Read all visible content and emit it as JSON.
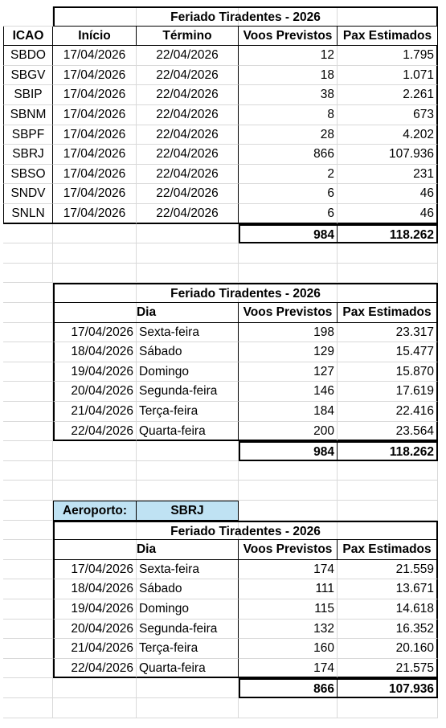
{
  "table1": {
    "title": "Feriado Tiradentes - 2026",
    "headers": [
      "ICAO",
      "Início",
      "Término",
      "Voos Previstos",
      "Pax Estimados"
    ],
    "rows": [
      [
        "SBDO",
        "17/04/2026",
        "22/04/2026",
        "12",
        "1.795"
      ],
      [
        "SBGV",
        "17/04/2026",
        "22/04/2026",
        "18",
        "1.071"
      ],
      [
        "SBIP",
        "17/04/2026",
        "22/04/2026",
        "38",
        "2.261"
      ],
      [
        "SBNM",
        "17/04/2026",
        "22/04/2026",
        "8",
        "673"
      ],
      [
        "SBPF",
        "17/04/2026",
        "22/04/2026",
        "28",
        "4.202"
      ],
      [
        "SBRJ",
        "17/04/2026",
        "22/04/2026",
        "866",
        "107.936"
      ],
      [
        "SBSO",
        "17/04/2026",
        "22/04/2026",
        "2",
        "231"
      ],
      [
        "SNDV",
        "17/04/2026",
        "22/04/2026",
        "6",
        "46"
      ],
      [
        "SNLN",
        "17/04/2026",
        "22/04/2026",
        "6",
        "46"
      ]
    ],
    "totals": [
      "984",
      "118.262"
    ]
  },
  "table2": {
    "title": "Feriado Tiradentes - 2026",
    "headers": [
      "Dia",
      "Voos Previstos",
      "Pax Estimados"
    ],
    "rows": [
      [
        "17/04/2026",
        "Sexta-feira",
        "198",
        "23.317"
      ],
      [
        "18/04/2026",
        "Sábado",
        "129",
        "15.477"
      ],
      [
        "19/04/2026",
        "Domingo",
        "127",
        "15.870"
      ],
      [
        "20/04/2026",
        "Segunda-feira",
        "146",
        "17.619"
      ],
      [
        "21/04/2026",
        "Terça-feira",
        "184",
        "22.416"
      ],
      [
        "22/04/2026",
        "Quarta-feira",
        "200",
        "23.564"
      ]
    ],
    "totals": [
      "984",
      "118.262"
    ]
  },
  "table3": {
    "airport_label": "Aeroporto:",
    "airport_value": "SBRJ",
    "title": "Feriado Tiradentes - 2026",
    "headers": [
      "Dia",
      "Voos Previstos",
      "Pax Estimados"
    ],
    "rows": [
      [
        "17/04/2026",
        "Sexta-feira",
        "174",
        "21.559"
      ],
      [
        "18/04/2026",
        "Sábado",
        "111",
        "13.671"
      ],
      [
        "19/04/2026",
        "Domingo",
        "115",
        "14.618"
      ],
      [
        "20/04/2026",
        "Segunda-feira",
        "132",
        "16.352"
      ],
      [
        "21/04/2026",
        "Terça-feira",
        "160",
        "20.160"
      ],
      [
        "22/04/2026",
        "Quarta-feira",
        "174",
        "21.575"
      ]
    ],
    "totals": [
      "866",
      "107.936"
    ]
  },
  "colors": {
    "highlight": "#bfe2f3",
    "gridline": "#d9d9d9",
    "border": "#000000"
  }
}
